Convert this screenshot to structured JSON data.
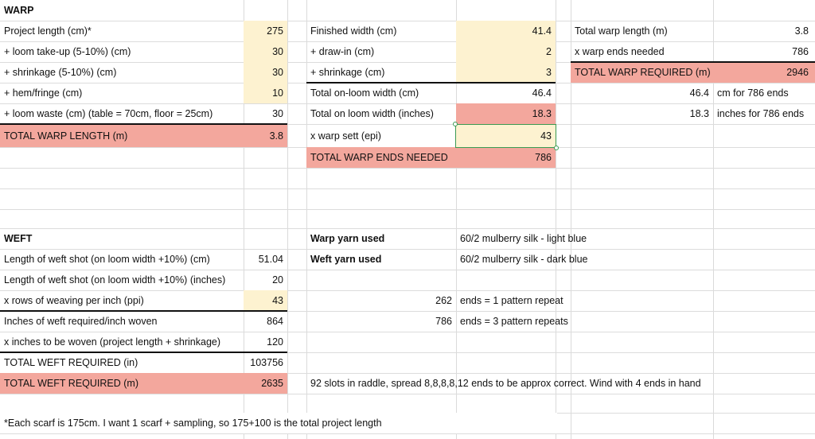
{
  "warp": {
    "title": "WARP",
    "length": {
      "project_length_label": "Project length (cm)*",
      "project_length": "275",
      "take_up_label": "+ loom take-up (5-10%) (cm)",
      "take_up": "30",
      "shrinkage_label": "+ shrinkage (5-10%) (cm)",
      "shrinkage": "30",
      "hem_label": "+ hem/fringe (cm)",
      "hem": "10",
      "loom_waste_label": "+ loom waste (cm) (table = 70cm, floor = 25cm)",
      "loom_waste": "30",
      "total_label": "TOTAL WARP LENGTH (m)",
      "total": "3.8"
    },
    "width": {
      "finished_label": "Finished width (cm)",
      "finished": "41.4",
      "draw_in_label": "+ draw-in (cm)",
      "draw_in": "2",
      "shrinkage_label": "+ shrinkage (cm)",
      "shrinkage": "3",
      "on_loom_cm_label": "Total on-loom width (cm)",
      "on_loom_cm": "46.4",
      "on_loom_in_label": "Total on loom width (inches)",
      "on_loom_in": "18.3",
      "sett_label": "x warp sett (epi)",
      "sett": "43",
      "ends_label": "TOTAL WARP ENDS NEEDED",
      "ends": "786"
    },
    "required": {
      "total_length_label": "Total warp length (m)",
      "total_length": "3.8",
      "ends_needed_label": "x warp ends needed",
      "ends_needed": "786",
      "required_label": "TOTAL WARP REQUIRED (m)",
      "required": "2946",
      "cm_value": "46.4",
      "cm_text": "cm for 786 ends",
      "in_value": "18.3",
      "in_text": "inches for 786 ends"
    }
  },
  "weft": {
    "title": "WEFT",
    "shot_cm_label": "Length of weft shot (on loom width +10%) (cm)",
    "shot_cm": "51.04",
    "shot_in_label": "Length of weft shot (on loom width +10%) (inches)",
    "shot_in": "20",
    "ppi_label": "x rows of weaving per inch (ppi)",
    "ppi": "43",
    "per_inch_label": "Inches of weft required/inch woven",
    "per_inch": "864",
    "woven_label": "x inches to be woven (project length + shrinkage)",
    "woven": "120",
    "total_in_label": "TOTAL WEFT REQUIRED (in)",
    "total_in": "103756",
    "total_m_label": "TOTAL WEFT REQUIRED (m)",
    "total_m": "2635"
  },
  "yarn": {
    "warp_label": "Warp yarn used",
    "warp_value": "60/2 mulberry silk - light blue",
    "weft_label": "Weft yarn used",
    "weft_value": "60/2 mulberry silk - dark blue",
    "repeat1_value": "262",
    "repeat1_text": "ends = 1 pattern repeat",
    "repeat3_value": "786",
    "repeat3_text": "ends = 3 pattern repeats",
    "raddle_note": "92 slots in raddle, spread 8,8,8,8,12 ends to be approx correct.  Wind with 4 ends in hand"
  },
  "footnote": "*Each scarf is 175cm.  I want 1 scarf + sampling, so 175+100 is the total project length",
  "colors": {
    "yellow": "#fdf2d0",
    "salmon": "#f3a79d",
    "selection": "#3a9a52",
    "grid": "#dcdcdc"
  }
}
